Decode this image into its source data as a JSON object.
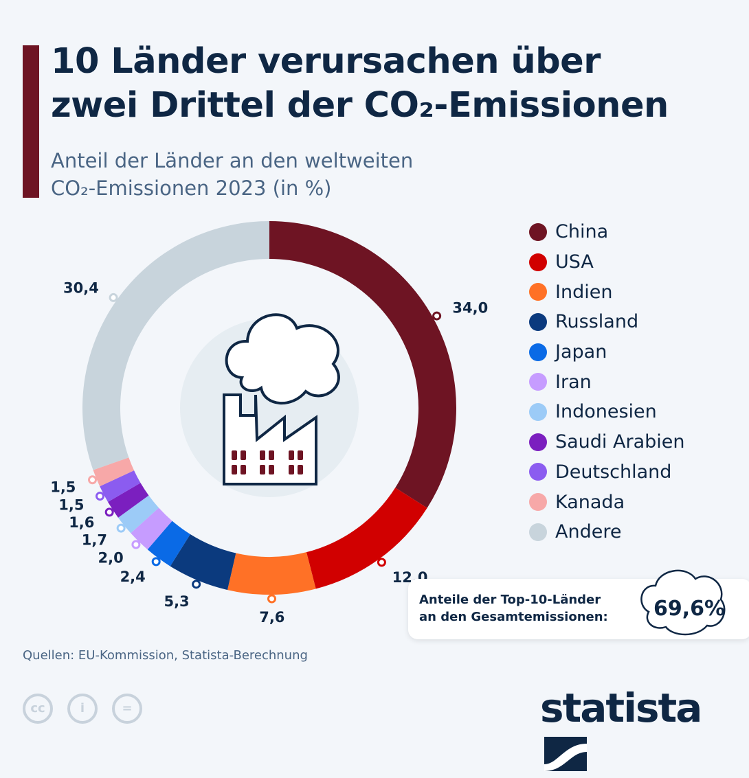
{
  "header": {
    "title_line1": "10 Länder verursachen über",
    "title_line2": "zwei Drittel der CO₂-Emissionen",
    "subtitle_line1": "Anteil der Länder an den weltweiten",
    "subtitle_line2": "CO₂-Emissionen 2023 (in %)"
  },
  "chart_data": {
    "type": "pie",
    "variant": "donut",
    "categories": [
      "China",
      "USA",
      "Indien",
      "Russland",
      "Japan",
      "Iran",
      "Indonesien",
      "Saudi Arabien",
      "Deutschland",
      "Kanada",
      "Andere"
    ],
    "values": [
      34.0,
      12.0,
      7.6,
      5.3,
      2.4,
      2.0,
      1.7,
      1.6,
      1.5,
      1.5,
      30.4
    ],
    "labels": [
      "34,0",
      "12,0",
      "7,6",
      "5,3",
      "2,4",
      "2,0",
      "1,7",
      "1,6",
      "1,5",
      "1,5",
      "30,4"
    ],
    "colors": [
      "#6e1423",
      "#d10000",
      "#ff7126",
      "#0b3a7e",
      "#0a6ae6",
      "#c69cff",
      "#9ccbf7",
      "#7b1fbf",
      "#8b5cf0",
      "#f7a8a8",
      "#c8d4dc"
    ],
    "legend_placement": "right",
    "center_icon": "factory-cloud-icon"
  },
  "callout": {
    "line1": "Anteile der Top-10-Länder",
    "line2": "an den Gesamtemissionen:",
    "value": "69,6%"
  },
  "footer": {
    "source": "Quellen: EU-Kommission, Statista-Berechnung",
    "license_icons": [
      "cc-icon",
      "by-icon",
      "nd-icon"
    ],
    "logo": "statista"
  }
}
